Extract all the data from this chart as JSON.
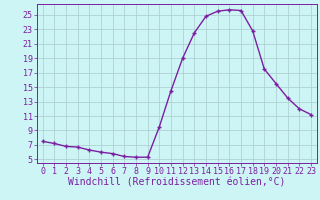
{
  "x": [
    0,
    1,
    2,
    3,
    4,
    5,
    6,
    7,
    8,
    9,
    10,
    11,
    12,
    13,
    14,
    15,
    16,
    17,
    18,
    19,
    20,
    21,
    22,
    23
  ],
  "y": [
    7.5,
    7.2,
    6.8,
    6.7,
    6.3,
    6.0,
    5.8,
    5.4,
    5.3,
    5.3,
    9.5,
    14.5,
    19.0,
    22.5,
    24.8,
    25.5,
    25.7,
    25.6,
    22.8,
    17.5,
    15.5,
    13.5,
    12.0,
    11.2
  ],
  "line_color": "#7b1fa2",
  "marker": "+",
  "marker_size": 3,
  "bg_color": "#cef5f5",
  "grid_color": "#aacccc",
  "xlabel": "Windchill (Refroidissement éolien,°C)",
  "ylabel": "",
  "xlim": [
    -0.5,
    23.5
  ],
  "ylim": [
    4.5,
    26.5
  ],
  "yticks": [
    5,
    7,
    9,
    11,
    13,
    15,
    17,
    19,
    21,
    23,
    25
  ],
  "xticks": [
    0,
    1,
    2,
    3,
    4,
    5,
    6,
    7,
    8,
    9,
    10,
    11,
    12,
    13,
    14,
    15,
    16,
    17,
    18,
    19,
    20,
    21,
    22,
    23
  ],
  "tick_label_color": "#7b1fa2",
  "axis_color": "#7b1fa2",
  "xlabel_fontsize": 7,
  "tick_fontsize": 6,
  "line_width": 1.0,
  "markeredgewidth": 1.0
}
